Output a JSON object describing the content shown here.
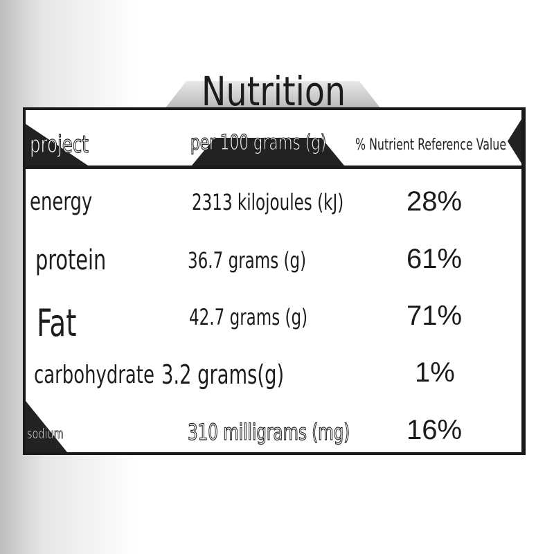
{
  "title": "Nutrition",
  "header": {
    "item": "project",
    "per": "per 100 grams (g)",
    "nrv": "% Nutrient Reference Value"
  },
  "rows": [
    {
      "item": "energy",
      "amount": "2313 kilojoules (kJ)",
      "nrv": "28%"
    },
    {
      "item": "protein",
      "amount": "36.7 grams (g)",
      "nrv": "61%"
    },
    {
      "item": "Fat",
      "amount": "42.7 grams (g)",
      "nrv": "71%"
    },
    {
      "item": "carbohydrate",
      "amount": "3.2 grams(g)",
      "nrv": "1%"
    },
    {
      "item": "sodium",
      "amount": "310 milligrams (mg)",
      "nrv": "16%"
    }
  ]
}
